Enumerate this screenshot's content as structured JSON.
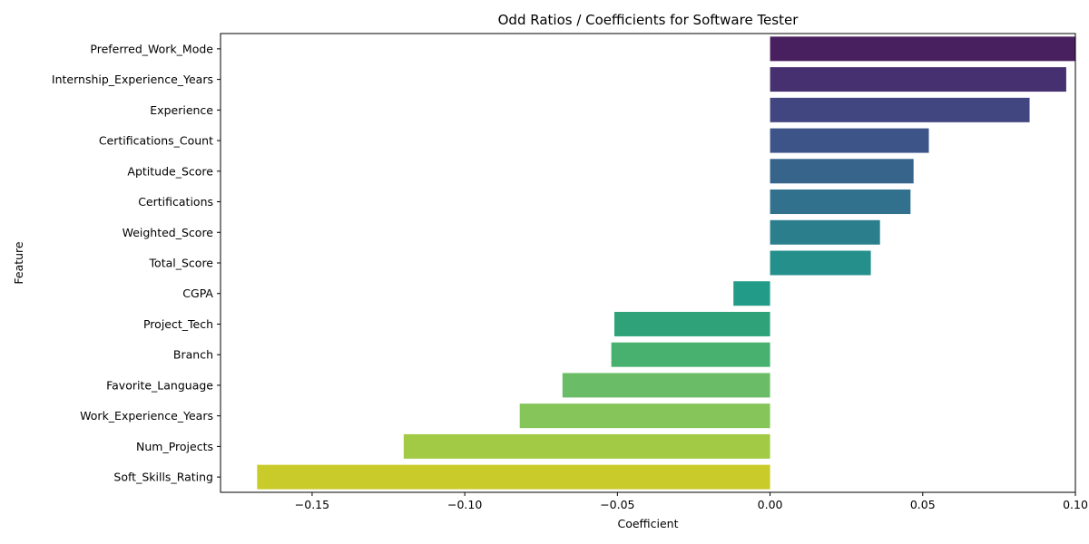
{
  "chart_data": {
    "type": "bar",
    "orientation": "horizontal",
    "title": "Odd Ratios / Coefficients for Software Tester",
    "xlabel": "Coefficient",
    "ylabel": "Feature",
    "xlim": [
      -0.18,
      0.1
    ],
    "xticks": [
      {
        "value": -0.15,
        "label": "−0.15"
      },
      {
        "value": -0.1,
        "label": "−0.10"
      },
      {
        "value": -0.05,
        "label": "−0.05"
      },
      {
        "value": 0.0,
        "label": "0.00"
      },
      {
        "value": 0.05,
        "label": "0.05"
      },
      {
        "value": 0.1,
        "label": "0.10"
      }
    ],
    "grid": false,
    "palette": "viridis",
    "categories": [
      "Preferred_Work_Mode",
      "Internship_Experience_Years",
      "Experience",
      "Certifications_Count",
      "Aptitude_Score",
      "Certifications",
      "Weighted_Score",
      "Total_Score",
      "CGPA",
      "Project_Tech",
      "Branch",
      "Favorite_Language",
      "Work_Experience_Years",
      "Num_Projects",
      "Soft_Skills_Rating"
    ],
    "values": [
      0.1,
      0.097,
      0.085,
      0.052,
      0.047,
      0.046,
      0.036,
      0.033,
      -0.012,
      -0.051,
      -0.052,
      -0.068,
      -0.082,
      -0.12,
      -0.168
    ],
    "colors": [
      "#481f5f",
      "#46306f",
      "#424680",
      "#3d5488",
      "#37648a",
      "#31718e",
      "#2b7f8d",
      "#25908b",
      "#229c88",
      "#30a27a",
      "#48b16f",
      "#6abd66",
      "#86c559",
      "#a2ca45",
      "#c8cb2a"
    ]
  }
}
